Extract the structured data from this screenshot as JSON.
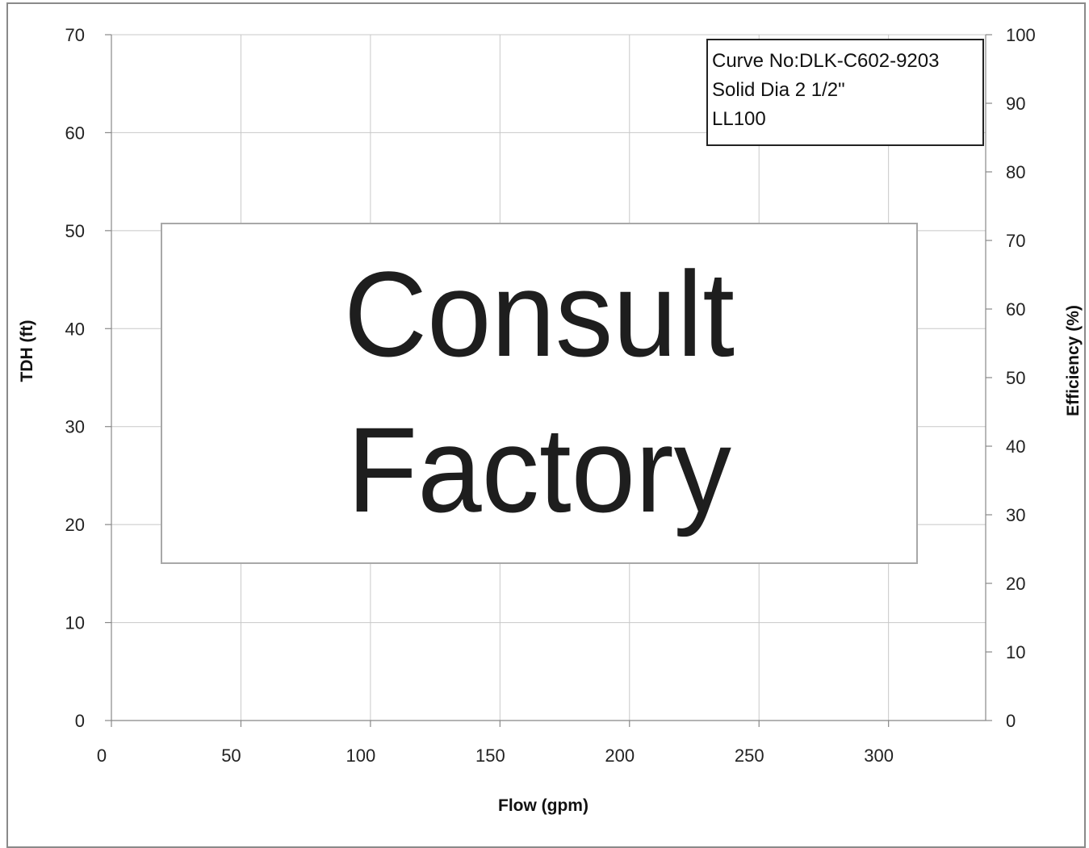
{
  "chart_data": {
    "type": "line",
    "title": "",
    "xlabel": "Flow (gpm)",
    "ylabel": "TDH (ft)",
    "y2label": "Efficiency (%)",
    "xlim": [
      0,
      337.5
    ],
    "ylim": [
      0,
      70
    ],
    "y2lim": [
      0,
      100
    ],
    "x_ticks": [
      0,
      50,
      100,
      150,
      200,
      250,
      300
    ],
    "y_ticks": [
      0,
      10,
      20,
      30,
      40,
      50,
      60,
      70
    ],
    "y2_ticks": [
      0,
      10,
      20,
      30,
      40,
      50,
      60,
      70,
      80,
      90,
      100
    ],
    "grid": true,
    "series": [],
    "info_box": [
      "Curve No:DLK-C602-9203",
      "Solid Dia 2 1/2\"",
      "LL100"
    ],
    "overlay": [
      "Consult",
      "Factory"
    ]
  }
}
